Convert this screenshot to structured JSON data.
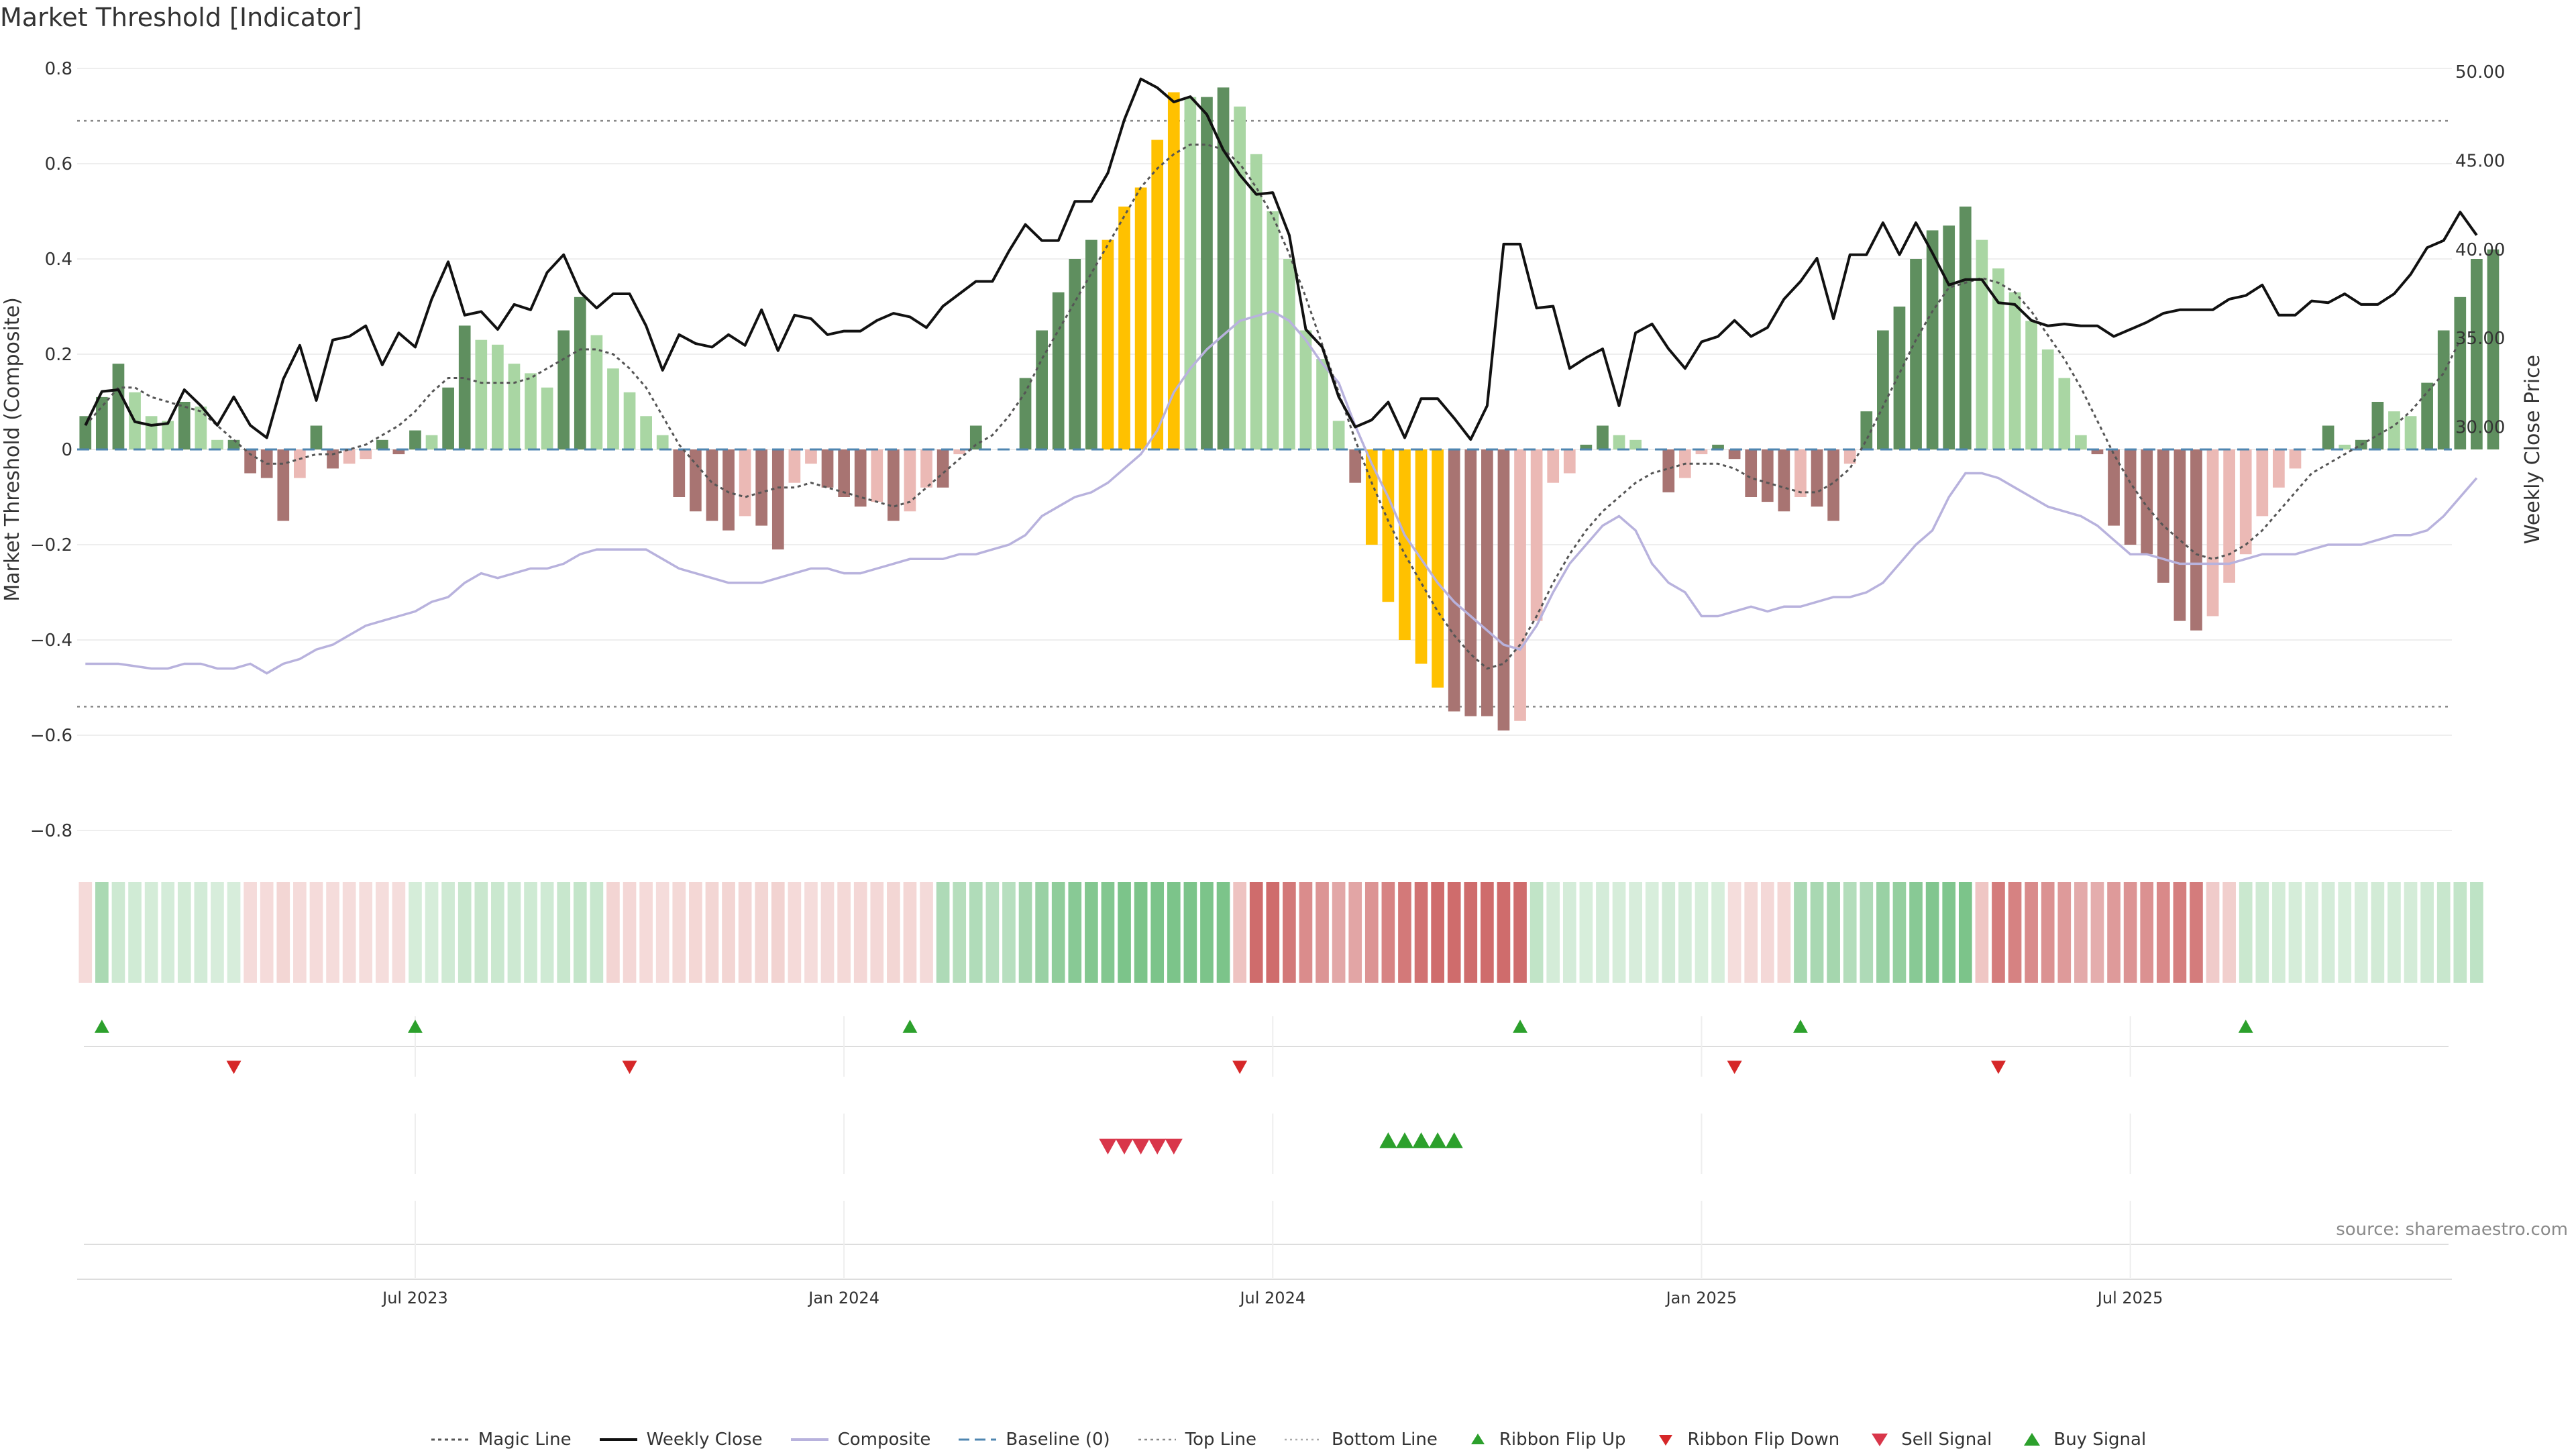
{
  "title": "Market Threshold [Indicator]",
  "source": "source: sharemaestro.com",
  "legend": [
    {
      "key": "magic",
      "label": "Magic Line"
    },
    {
      "key": "close",
      "label": "Weekly Close"
    },
    {
      "key": "composite",
      "label": "Composite"
    },
    {
      "key": "baseline",
      "label": "Baseline (0)"
    },
    {
      "key": "top",
      "label": "Top Line"
    },
    {
      "key": "bottom",
      "label": "Bottom Line"
    },
    {
      "key": "flipup",
      "label": "Ribbon Flip Up"
    },
    {
      "key": "flipdown",
      "label": "Ribbon Flip Down"
    },
    {
      "key": "sell",
      "label": "Sell Signal"
    },
    {
      "key": "buy",
      "label": "Buy Signal"
    }
  ],
  "colors": {
    "dark_green": "#5f8f5f",
    "light_green": "#a9d6a3",
    "dark_red": "#a87472",
    "light_red": "#ebb9b5",
    "yellow": "#ffc100",
    "close": "#111111",
    "composite": "#b8b2dd",
    "magic": "#555555",
    "baseline": "#4f86b0",
    "triangle_green": "#2ca02c",
    "triangle_red": "#d62728"
  },
  "chart_data": {
    "type": "bar",
    "ylabel_left": "Market Threshold (Composite)",
    "ylabel_right": "Weekly Close Price",
    "ylim_left": [
      -0.8,
      0.8
    ],
    "ylim_right": [
      30,
      50
    ],
    "left_ticks": [
      "0.8",
      "0.6",
      "0.4",
      "0.2",
      "0",
      "−0.2",
      "−0.4",
      "−0.6",
      "−0.8"
    ],
    "right_ticks": [
      "50.00",
      "45.00",
      "40.00",
      "35.00",
      "30.00"
    ],
    "x_ticks": [
      {
        "label": "Jul 2023",
        "week": 20
      },
      {
        "label": "Jan 2024",
        "week": 46
      },
      {
        "label": "Jul 2024",
        "week": 72
      },
      {
        "label": "Jan 2025",
        "week": 98
      },
      {
        "label": "Jul 2025",
        "week": 124
      }
    ],
    "top_line": 0.69,
    "bottom_line": -0.54,
    "weeks": 144,
    "bars": [
      0.07,
      0.11,
      0.18,
      0.12,
      0.07,
      0.06,
      0.1,
      0.09,
      0.02,
      0.02,
      -0.05,
      -0.06,
      -0.15,
      -0.06,
      0.05,
      -0.04,
      -0.03,
      -0.02,
      0.02,
      -0.01,
      0.04,
      0.03,
      0.13,
      0.26,
      0.23,
      0.22,
      0.18,
      0.16,
      0.13,
      0.25,
      0.32,
      0.24,
      0.17,
      0.12,
      0.07,
      0.03,
      -0.1,
      -0.13,
      -0.15,
      -0.17,
      -0.14,
      -0.16,
      -0.21,
      -0.07,
      -0.03,
      -0.08,
      -0.1,
      -0.12,
      -0.11,
      -0.15,
      -0.13,
      -0.08,
      -0.08,
      -0.01,
      0.05,
      0,
      0,
      0.15,
      0.25,
      0.33,
      0.4,
      0.44,
      0.44,
      0.51,
      0.55,
      0.65,
      0.75,
      0.74,
      0.74,
      0.76,
      0.72,
      0.62,
      0.5,
      0.4,
      0.25,
      0.19,
      0.06,
      -0.07,
      -0.2,
      -0.32,
      -0.4,
      -0.45,
      -0.5,
      -0.55,
      -0.56,
      -0.56,
      -0.59,
      -0.57,
      -0.36,
      -0.07,
      -0.05,
      0.01,
      0.05,
      0.03,
      0.02,
      0,
      -0.09,
      -0.06,
      -0.01,
      0.01,
      -0.02,
      -0.1,
      -0.11,
      -0.13,
      -0.1,
      -0.12,
      -0.15,
      -0.03,
      0.08,
      0.25,
      0.3,
      0.4,
      0.46,
      0.47,
      0.51,
      0.44,
      0.38,
      0.33,
      0.27,
      0.21,
      0.15,
      0.03,
      -0.01,
      -0.16,
      -0.2,
      -0.22,
      -0.28,
      -0.36,
      -0.38,
      -0.35,
      -0.28,
      -0.22,
      -0.14,
      -0.08,
      -0.04,
      0,
      0.05,
      0.01,
      0.02,
      0.1,
      0.08,
      0.07,
      0.14,
      0.25,
      0.32,
      0.4,
      0.42
    ],
    "yellow_weeks": [
      62,
      63,
      64,
      65,
      66,
      78,
      79,
      80,
      81,
      82
    ],
    "weekly_close": [
      30.1,
      32,
      32.1,
      30.3,
      30.1,
      30.2,
      32.1,
      31.2,
      30.1,
      31.7,
      30.1,
      29.4,
      32.7,
      34.6,
      31.5,
      34.9,
      35.1,
      35.7,
      33.5,
      35.3,
      34.5,
      37.2,
      39.3,
      36.3,
      36.5,
      35.5,
      36.9,
      36.6,
      38.7,
      39.7,
      37.6,
      36.7,
      37.5,
      37.5,
      35.7,
      33.2,
      35.2,
      34.7,
      34.5,
      35.2,
      34.6,
      36.6,
      34.3,
      36.3,
      36.1,
      35.2,
      35.4,
      35.4,
      36,
      36.4,
      36.2,
      35.6,
      36.8,
      37.5,
      38.2,
      38.2,
      39.9,
      41.4,
      40.5,
      40.5,
      42.7,
      42.7,
      44.3,
      47.3,
      49.6,
      49.1,
      48.3,
      48.6,
      47.6,
      45.6,
      44.2,
      43.1,
      43.2,
      40.8,
      35.5,
      34.5,
      31.7,
      30,
      30.4,
      31.4,
      29.4,
      31.6,
      31.6,
      30.5,
      29.3,
      31.2,
      40.3,
      40.3,
      36.7,
      36.8,
      33.3,
      33.9,
      34.4,
      31.2,
      35.3,
      35.8,
      34.4,
      33.3,
      34.8,
      35.1,
      36,
      35.1,
      35.6,
      37.2,
      38.2,
      39.5,
      36.1,
      39.7,
      39.7,
      41.5,
      39.7,
      41.5,
      39.8,
      38,
      38.3,
      38.3,
      37,
      36.9,
      36,
      35.7,
      35.8,
      35.7,
      35.7,
      35.1,
      35.5,
      35.9,
      36.4,
      36.6,
      36.6,
      36.6,
      37.2,
      37.4,
      38,
      36.3,
      36.3,
      37.1,
      37,
      37.5,
      36.9,
      36.9,
      37.5,
      38.6,
      40.1,
      40.5,
      42.1,
      40.8
    ],
    "composite": [
      -0.45,
      -0.45,
      -0.45,
      -0.455,
      -0.46,
      -0.46,
      -0.45,
      -0.45,
      -0.46,
      -0.46,
      -0.45,
      -0.47,
      -0.45,
      -0.44,
      -0.42,
      -0.41,
      -0.39,
      -0.37,
      -0.36,
      -0.35,
      -0.34,
      -0.32,
      -0.31,
      -0.28,
      -0.26,
      -0.27,
      -0.26,
      -0.25,
      -0.25,
      -0.24,
      -0.22,
      -0.21,
      -0.21,
      -0.21,
      -0.21,
      -0.23,
      -0.25,
      -0.26,
      -0.27,
      -0.28,
      -0.28,
      -0.28,
      -0.27,
      -0.26,
      -0.25,
      -0.25,
      -0.26,
      -0.26,
      -0.25,
      -0.24,
      -0.23,
      -0.23,
      -0.23,
      -0.22,
      -0.22,
      -0.21,
      -0.2,
      -0.18,
      -0.14,
      -0.12,
      -0.1,
      -0.09,
      -0.07,
      -0.04,
      -0.01,
      0.04,
      0.12,
      0.17,
      0.21,
      0.24,
      0.27,
      0.28,
      0.29,
      0.27,
      0.23,
      0.18,
      0.14,
      0.05,
      -0.03,
      -0.1,
      -0.18,
      -0.23,
      -0.28,
      -0.32,
      -0.35,
      -0.38,
      -0.41,
      -0.42,
      -0.37,
      -0.3,
      -0.24,
      -0.2,
      -0.16,
      -0.14,
      -0.17,
      -0.24,
      -0.28,
      -0.3,
      -0.35,
      -0.35,
      -0.34,
      -0.33,
      -0.34,
      -0.33,
      -0.33,
      -0.32,
      -0.31,
      -0.31,
      -0.3,
      -0.28,
      -0.24,
      -0.2,
      -0.17,
      -0.1,
      -0.05,
      -0.05,
      -0.06,
      -0.08,
      -0.1,
      -0.12,
      -0.13,
      -0.14,
      -0.16,
      -0.19,
      -0.22,
      -0.22,
      -0.23,
      -0.24,
      -0.24,
      -0.24,
      -0.24,
      -0.23,
      -0.22,
      -0.22,
      -0.22,
      -0.21,
      -0.2,
      -0.2,
      -0.2,
      -0.19,
      -0.18,
      -0.18,
      -0.17,
      -0.14,
      -0.1,
      -0.06
    ],
    "magic_line": [
      0.05,
      0.09,
      0.13,
      0.13,
      0.11,
      0.1,
      0.09,
      0.08,
      0.05,
      0.02,
      -0.01,
      -0.03,
      -0.03,
      -0.02,
      -0.01,
      -0.01,
      0,
      0.01,
      0.03,
      0.05,
      0.08,
      0.12,
      0.15,
      0.15,
      0.14,
      0.14,
      0.14,
      0.15,
      0.17,
      0.19,
      0.21,
      0.21,
      0.2,
      0.17,
      0.13,
      0.07,
      0.01,
      -0.03,
      -0.07,
      -0.09,
      -0.1,
      -0.09,
      -0.08,
      -0.08,
      -0.07,
      -0.08,
      -0.09,
      -0.1,
      -0.11,
      -0.12,
      -0.11,
      -0.08,
      -0.05,
      -0.02,
      0.01,
      0.03,
      0.07,
      0.12,
      0.19,
      0.25,
      0.31,
      0.37,
      0.43,
      0.49,
      0.55,
      0.59,
      0.62,
      0.64,
      0.64,
      0.63,
      0.6,
      0.55,
      0.49,
      0.41,
      0.32,
      0.22,
      0.12,
      0.02,
      -0.07,
      -0.15,
      -0.22,
      -0.28,
      -0.34,
      -0.39,
      -0.43,
      -0.46,
      -0.45,
      -0.41,
      -0.35,
      -0.28,
      -0.22,
      -0.17,
      -0.13,
      -0.1,
      -0.07,
      -0.05,
      -0.04,
      -0.03,
      -0.03,
      -0.03,
      -0.04,
      -0.06,
      -0.07,
      -0.08,
      -0.09,
      -0.09,
      -0.07,
      -0.04,
      0.02,
      0.09,
      0.16,
      0.23,
      0.29,
      0.34,
      0.35,
      0.36,
      0.35,
      0.33,
      0.29,
      0.24,
      0.19,
      0.13,
      0.06,
      -0.01,
      -0.07,
      -0.12,
      -0.16,
      -0.19,
      -0.22,
      -0.23,
      -0.22,
      -0.2,
      -0.17,
      -0.13,
      -0.09,
      -0.05,
      -0.03,
      -0.01,
      0.01,
      0.03,
      0.05,
      0.08,
      0.12,
      0.16,
      0.23
    ],
    "ribbon": [
      "lr",
      "g",
      "lg",
      "lg",
      "lg",
      "lg",
      "lg",
      "lg",
      "lg",
      "lg",
      "lr",
      "lr",
      "lr",
      "lr",
      "lr",
      "lr",
      "lr",
      "lr",
      "lr",
      "lr",
      "lg",
      "lg",
      "lg",
      "lg",
      "lg",
      "lg",
      "lg",
      "lg",
      "lg",
      "lg",
      "lg",
      "lg",
      "lr",
      "lr",
      "lr",
      "lr",
      "lr",
      "lr",
      "lr",
      "lr",
      "lr",
      "lr",
      "lr",
      "lr",
      "lr",
      "lr",
      "lr",
      "lr",
      "lr",
      "lr",
      "lr",
      "lr",
      "g",
      "g",
      "g",
      "g",
      "g",
      "g",
      "g",
      "g",
      "g",
      "g",
      "g",
      "g",
      "g",
      "g",
      "g",
      "g",
      "g",
      "g",
      "lr",
      "r",
      "r",
      "r",
      "r",
      "r",
      "r",
      "r",
      "r",
      "r",
      "r",
      "r",
      "r",
      "r",
      "r",
      "r",
      "r",
      "r",
      "lg",
      "lg",
      "lg",
      "lg",
      "lg",
      "lg",
      "lg",
      "lg",
      "lg",
      "lg",
      "lg",
      "lg",
      "lr",
      "lr",
      "lr",
      "lr",
      "g",
      "g",
      "g",
      "g",
      "g",
      "g",
      "g",
      "g",
      "g",
      "g",
      "g",
      "lr",
      "r",
      "r",
      "r",
      "r",
      "r",
      "r",
      "r",
      "r",
      "r",
      "r",
      "r",
      "r",
      "r",
      "lr",
      "lr",
      "lg",
      "lg",
      "lg",
      "lg",
      "lg",
      "lg",
      "lg",
      "lg",
      "lg",
      "lg",
      "lg",
      "lg",
      "lg",
      "lg",
      "lg"
    ],
    "ribbon_flip_up_weeks": [
      1,
      20,
      50,
      87,
      104,
      131
    ],
    "ribbon_flip_down_weeks": [
      9,
      33,
      70,
      100,
      116
    ],
    "sell_signal_weeks": [
      62,
      63,
      64,
      65,
      66
    ],
    "buy_signal_weeks": [
      79,
      80,
      81,
      82,
      83
    ]
  }
}
